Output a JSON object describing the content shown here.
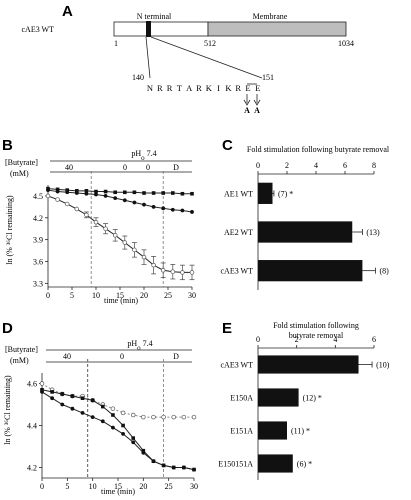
{
  "figure": {
    "panel_labels": [
      "A",
      "B",
      "C",
      "D",
      "E"
    ],
    "panel_a": {
      "protein_label": "cAE3 WT",
      "region_labels": {
        "n_terminal": "N terminal",
        "membrane": "Membrane"
      },
      "ticks": [
        "1",
        "512",
        "1034"
      ],
      "seq_start": "140",
      "seq_end": "151",
      "sequence": [
        "N",
        "R",
        "R",
        "T",
        "A",
        "R",
        "K",
        "I",
        "K",
        "R",
        "E",
        "E"
      ],
      "mutations": [
        "A",
        "A"
      ]
    },
    "panel_b": {
      "butyrate_label": "[Butyrate]",
      "units_label": "(mM)",
      "phase_values": [
        "40",
        "0",
        "0"
      ],
      "ph_label": "pH",
      "ph_sub": "o",
      "ph_value": " 7.4",
      "d_label": "D",
      "ylabel": "ln (% ³⁶Cl remaining)",
      "xlabel": "time (min)"
    },
    "panel_c": {
      "title": "Fold stimulation following butyrate removal",
      "row_notes": [
        "(7) *",
        "(13)",
        "(8)"
      ]
    },
    "panel_d": {
      "butyrate_label": "[Butyrate]",
      "units_label": "(mM)",
      "phase_values": [
        "40",
        "0"
      ],
      "ph_label": "pH",
      "ph_sub": "o",
      "ph_value": " 7.4",
      "d_label": "D",
      "ylabel": "ln (% ³⁶Cl remaining)",
      "xlabel": "time (min)"
    },
    "panel_e": {
      "title_line1": "Fold stimulation following",
      "title_line2": "butyrate removal",
      "row_notes": [
        "(10)",
        "(12) *",
        "(11) *",
        "(6) *"
      ]
    }
  },
  "chart_data": [
    {
      "panel": "B",
      "type": "line",
      "xlabel": "time (min)",
      "ylabel": "ln (% ³⁶Cl remaining)",
      "xlim": [
        0,
        30
      ],
      "ylim": [
        3.25,
        4.65
      ],
      "xticks": [
        0,
        5,
        10,
        15,
        20,
        25,
        30
      ],
      "yticks": [
        3.3,
        3.6,
        3.9,
        4.2,
        4.5
      ],
      "series": [
        {
          "marker": "square-filled",
          "x": [
            0,
            2,
            4,
            6,
            8,
            10,
            12,
            14,
            16,
            18,
            20,
            22,
            24,
            26,
            28,
            30
          ],
          "y": [
            4.6,
            4.59,
            4.58,
            4.57,
            4.57,
            4.56,
            4.56,
            4.55,
            4.55,
            4.55,
            4.54,
            4.54,
            4.54,
            4.54,
            4.53,
            4.53
          ]
        },
        {
          "marker": "circle-filled",
          "x": [
            0,
            2,
            4,
            6,
            8,
            10,
            12,
            14,
            16,
            18,
            20,
            22,
            24,
            26,
            28,
            30
          ],
          "y": [
            4.58,
            4.56,
            4.55,
            4.54,
            4.53,
            4.52,
            4.5,
            4.47,
            4.44,
            4.41,
            4.38,
            4.35,
            4.33,
            4.31,
            4.3,
            4.28
          ]
        },
        {
          "marker": "circle-open",
          "x": [
            0,
            2,
            4,
            6,
            8,
            10,
            12,
            14,
            16,
            18,
            20,
            22,
            24,
            26,
            28,
            30
          ],
          "y": [
            4.5,
            4.45,
            4.39,
            4.32,
            4.24,
            4.14,
            4.05,
            3.96,
            3.86,
            3.76,
            3.66,
            3.55,
            3.48,
            3.46,
            3.45,
            3.45
          ],
          "errorbars": [
            0,
            0,
            0,
            0,
            0.04,
            0.06,
            0.07,
            0.08,
            0.09,
            0.1,
            0.1,
            0.12,
            0.1,
            0.1,
            0.1,
            0.1
          ]
        }
      ],
      "annotations": {
        "vlines": [
          9,
          24
        ]
      }
    },
    {
      "panel": "C",
      "type": "bar",
      "categories": [
        "AE1 WT",
        "AE2 WT",
        "cAE3 WT"
      ],
      "values": [
        1.0,
        6.5,
        7.2
      ],
      "errors": [
        0.1,
        0.7,
        0.9
      ],
      "xlim": [
        0,
        8
      ],
      "xticks": [
        0,
        2,
        4,
        6,
        8
      ]
    },
    {
      "panel": "D",
      "type": "line",
      "xlabel": "time (min)",
      "ylabel": "ln (% ³⁶Cl remaining)",
      "xlim": [
        0,
        30
      ],
      "ylim": [
        4.15,
        4.65
      ],
      "xticks": [
        0,
        5,
        10,
        15,
        20,
        25,
        30
      ],
      "yticks": [
        4.2,
        4.4,
        4.6
      ],
      "series": [
        {
          "marker": "circle-open",
          "x": [
            0,
            2,
            4,
            6,
            8,
            10,
            12,
            14,
            16,
            18,
            20,
            22,
            24,
            26,
            28,
            30
          ],
          "y": [
            4.6,
            4.57,
            4.55,
            4.54,
            4.54,
            4.52,
            4.5,
            4.48,
            4.46,
            4.45,
            4.44,
            4.44,
            4.44,
            4.44,
            4.44,
            4.44
          ]
        },
        {
          "marker": "square-filled",
          "x": [
            0,
            2,
            4,
            6,
            8,
            10,
            12,
            14,
            16,
            18,
            20,
            22,
            24,
            26,
            28,
            30
          ],
          "y": [
            4.57,
            4.56,
            4.55,
            4.54,
            4.53,
            4.52,
            4.49,
            4.45,
            4.4,
            4.34,
            4.28,
            4.23,
            4.21,
            4.2,
            4.2,
            4.19
          ]
        },
        {
          "marker": "circle-filled",
          "x": [
            0,
            2,
            4,
            6,
            8,
            10,
            12,
            14,
            16,
            18,
            20,
            22,
            24,
            26,
            28,
            30
          ],
          "y": [
            4.56,
            4.53,
            4.5,
            4.48,
            4.46,
            4.44,
            4.42,
            4.39,
            4.36,
            4.32,
            4.27,
            4.23,
            4.21,
            4.2,
            4.2,
            4.19
          ]
        }
      ],
      "annotations": {
        "vlines": [
          9,
          24
        ]
      }
    },
    {
      "panel": "E",
      "type": "bar",
      "categories": [
        "cAE3 WT",
        "E150A",
        "E151A",
        "E150151A"
      ],
      "values": [
        5.2,
        2.1,
        1.5,
        1.8
      ],
      "errors": [
        0.7,
        0,
        0,
        0
      ],
      "xlim": [
        0,
        6
      ],
      "xticks": [
        0,
        2,
        4,
        6
      ]
    }
  ]
}
